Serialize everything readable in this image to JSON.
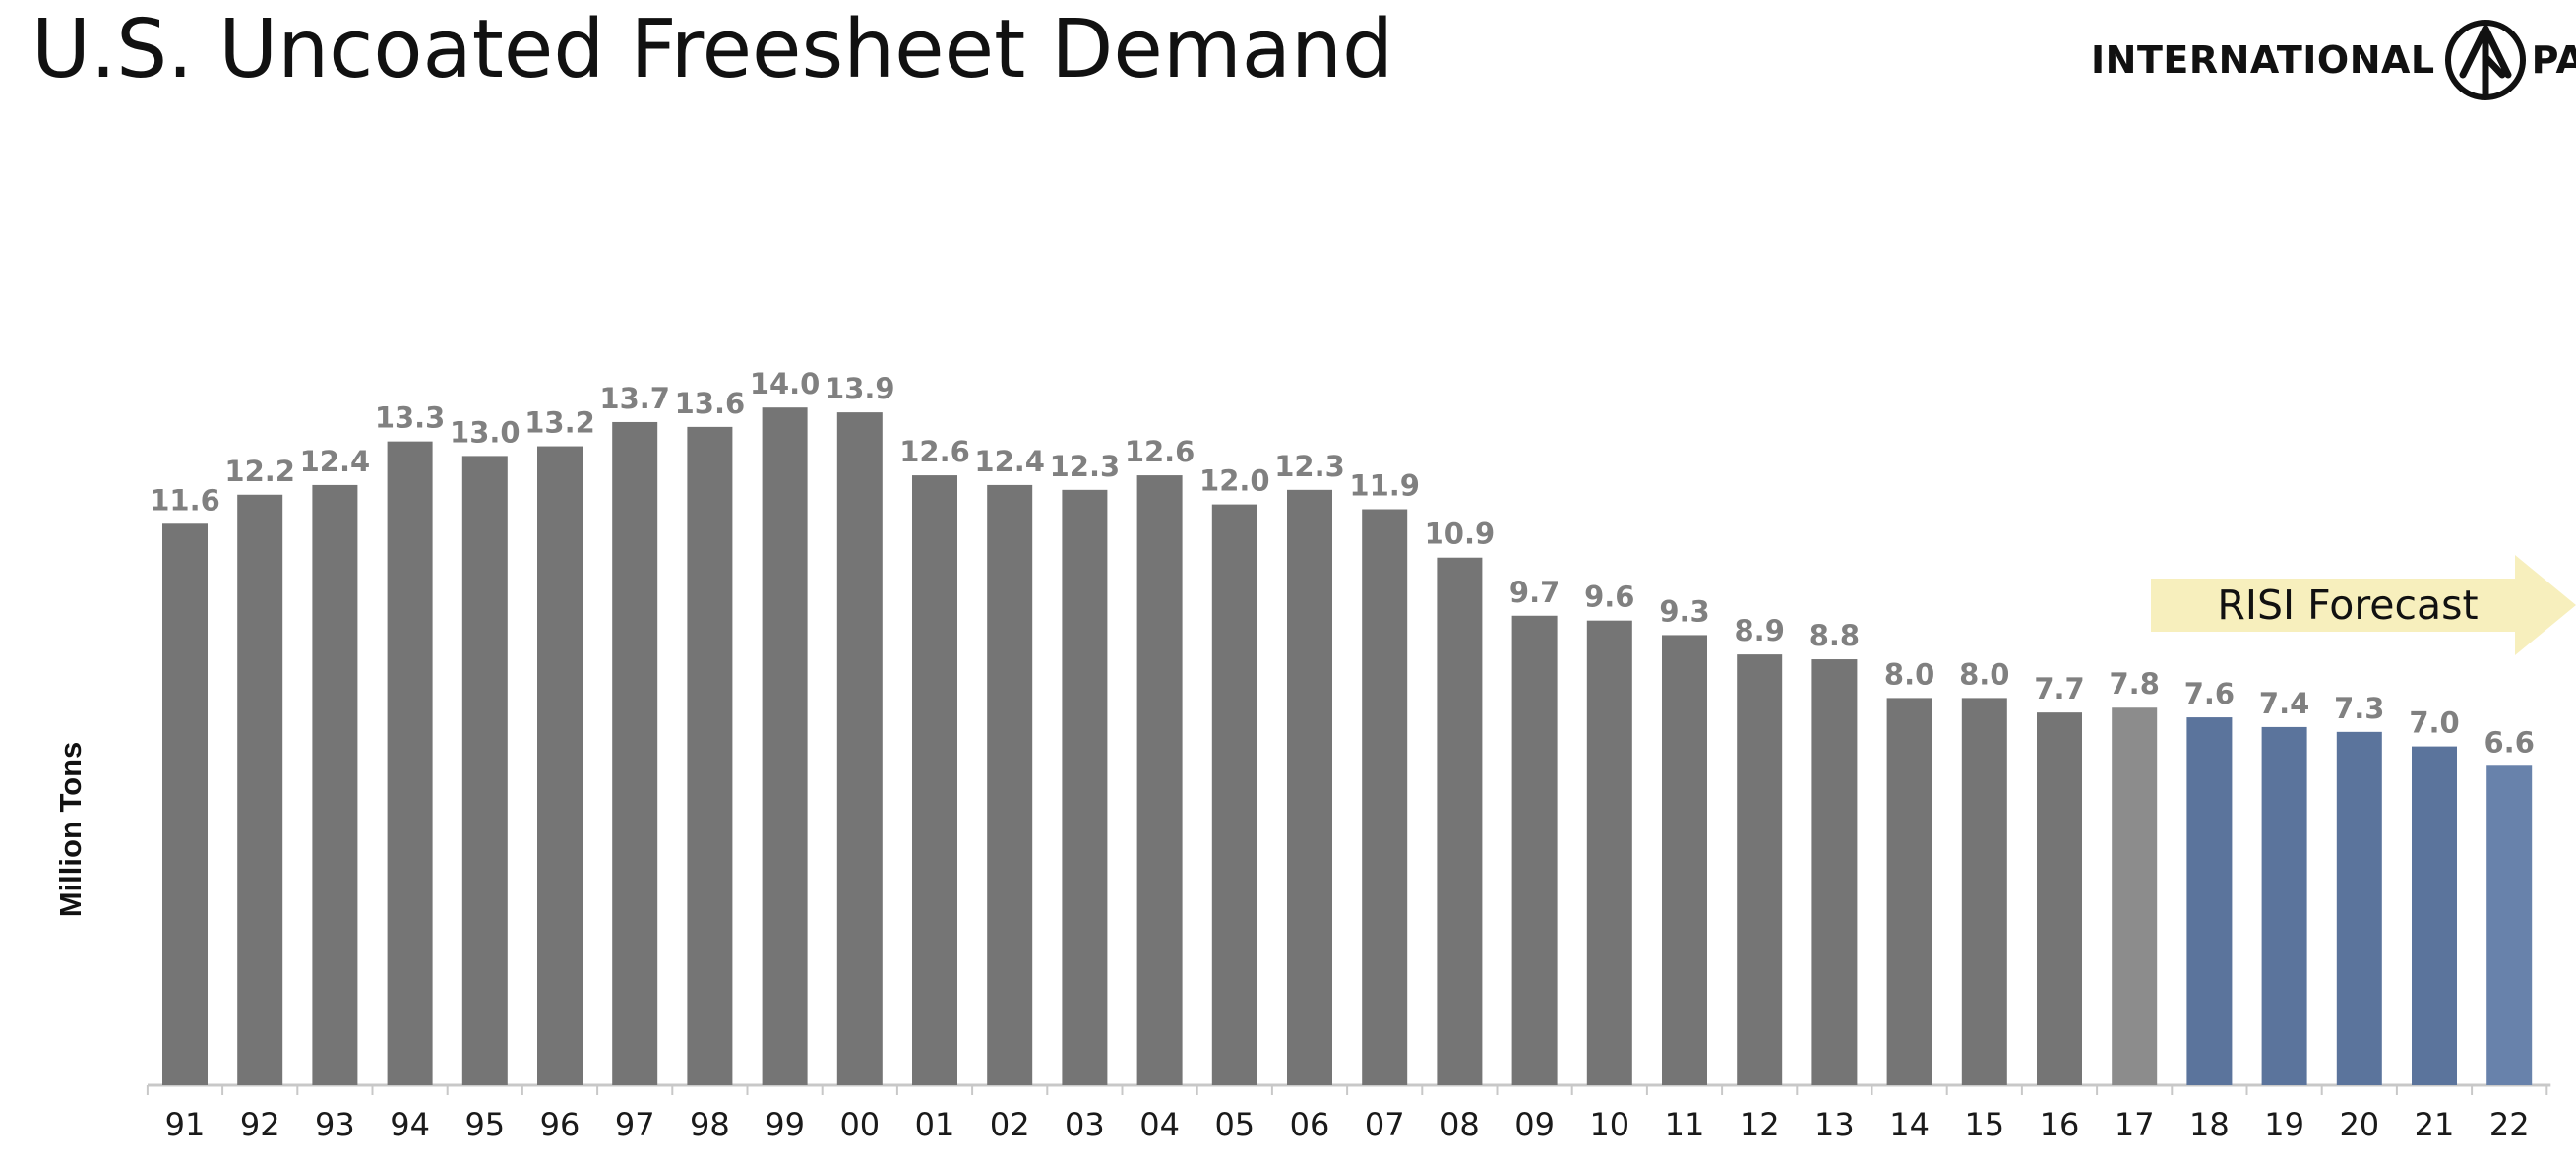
{
  "page": {
    "title": "U.S. Uncoated Freesheet Demand"
  },
  "logo": {
    "text": "INTERNATIONAL",
    "tail_text": "PA",
    "mark_icon": "international-paper-tree-icon"
  },
  "colors": {
    "historical_bar": "#757575",
    "last_actual_bar": "#8c8c8c",
    "forecast_bar": "#5b749c",
    "last_forecast_bar": "#6882ab",
    "data_label": "#808080",
    "axis": "#c8c8c8",
    "forecast_arrow": "#f7efbd"
  },
  "chart_data": {
    "type": "bar",
    "title": "",
    "xlabel": "",
    "ylabel": "Million Tons",
    "ylim": [
      0,
      14.0
    ],
    "grid": false,
    "categories": [
      "91",
      "92",
      "93",
      "94",
      "95",
      "96",
      "97",
      "98",
      "99",
      "00",
      "01",
      "02",
      "03",
      "04",
      "05",
      "06",
      "07",
      "08",
      "09",
      "10",
      "11",
      "12",
      "13",
      "14",
      "15",
      "16",
      "17",
      "18",
      "19",
      "20",
      "21",
      "22"
    ],
    "values": [
      11.6,
      12.2,
      12.4,
      13.3,
      13.0,
      13.2,
      13.7,
      13.6,
      14.0,
      13.9,
      12.6,
      12.4,
      12.3,
      12.6,
      12.0,
      12.3,
      11.9,
      10.9,
      9.7,
      9.6,
      9.3,
      8.9,
      8.8,
      8.0,
      8.0,
      7.7,
      7.8,
      7.6,
      7.4,
      7.3,
      7.0,
      6.6
    ],
    "labels": [
      "11.6",
      "12.2",
      "12.4",
      "13.3",
      "13.0",
      "13.2",
      "13.7",
      "13.6",
      "14.0",
      "13.9",
      "12.6",
      "12.4",
      "12.3",
      "12.6",
      "12.0",
      "12.3",
      "11.9",
      "10.9",
      "9.7",
      "9.6",
      "9.3",
      "8.9",
      "8.8",
      "8.0",
      "8.0",
      "7.7",
      "7.8",
      "7.6",
      "7.4",
      "7.3",
      "7.0",
      "6.6"
    ],
    "forecast_start_index": 27,
    "annotations": [
      {
        "text": "RISI Forecast",
        "style": "arrow"
      }
    ]
  }
}
